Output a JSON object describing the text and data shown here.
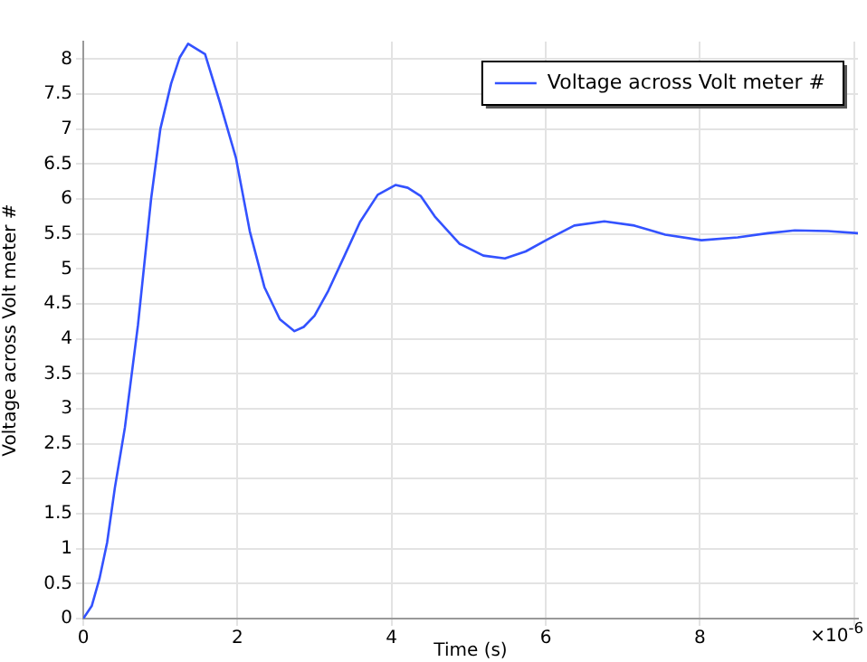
{
  "chart_data": {
    "type": "line",
    "xlabel": "Time (s)",
    "ylabel": "Voltage across Volt meter #",
    "annotations": [
      "×10$^{-6}$"
    ],
    "xlim": [
      0,
      10.05
    ],
    "xticks": [
      0,
      2,
      4,
      6,
      8,
      {
        "value": 10,
        "label": null
      }
    ],
    "ylim": [
      0,
      8.25
    ],
    "yticks": [
      0,
      0.5,
      1,
      1.5,
      2,
      2.5,
      3,
      3.5,
      4,
      4.5,
      5,
      5.5,
      6,
      6.5,
      7,
      7.5,
      8
    ],
    "grid": true,
    "legend": "top right",
    "marker": "none",
    "line_style": "solid",
    "series": [
      {
        "name": "Voltage across Volt meter #",
        "color": "#3352ff",
        "x": [
          0,
          0.11,
          0.21,
          0.31,
          0.41,
          0.54,
          0.71,
          0.88,
          1.0,
          1.14,
          1.25,
          1.36,
          1.58,
          1.77,
          1.98,
          2.16,
          2.35,
          2.55,
          2.74,
          2.86,
          3.0,
          3.18,
          3.39,
          3.59,
          3.82,
          4.05,
          4.21,
          4.38,
          4.56,
          4.88,
          5.19,
          5.47,
          5.74,
          6.02,
          6.37,
          6.76,
          7.15,
          7.55,
          8.02,
          8.49,
          8.88,
          9.23,
          9.66,
          10.05
        ],
        "values": [
          0,
          0.18,
          0.57,
          1.09,
          1.87,
          2.73,
          4.2,
          6.0,
          7.0,
          7.65,
          8.02,
          8.22,
          8.07,
          7.39,
          6.59,
          5.54,
          4.74,
          4.28,
          4.11,
          4.17,
          4.33,
          4.69,
          5.19,
          5.67,
          6.06,
          6.2,
          6.16,
          6.04,
          5.75,
          5.36,
          5.19,
          5.15,
          5.25,
          5.42,
          5.62,
          5.68,
          5.62,
          5.49,
          5.41,
          5.45,
          5.51,
          5.55,
          5.54,
          5.51
        ]
      }
    ]
  }
}
